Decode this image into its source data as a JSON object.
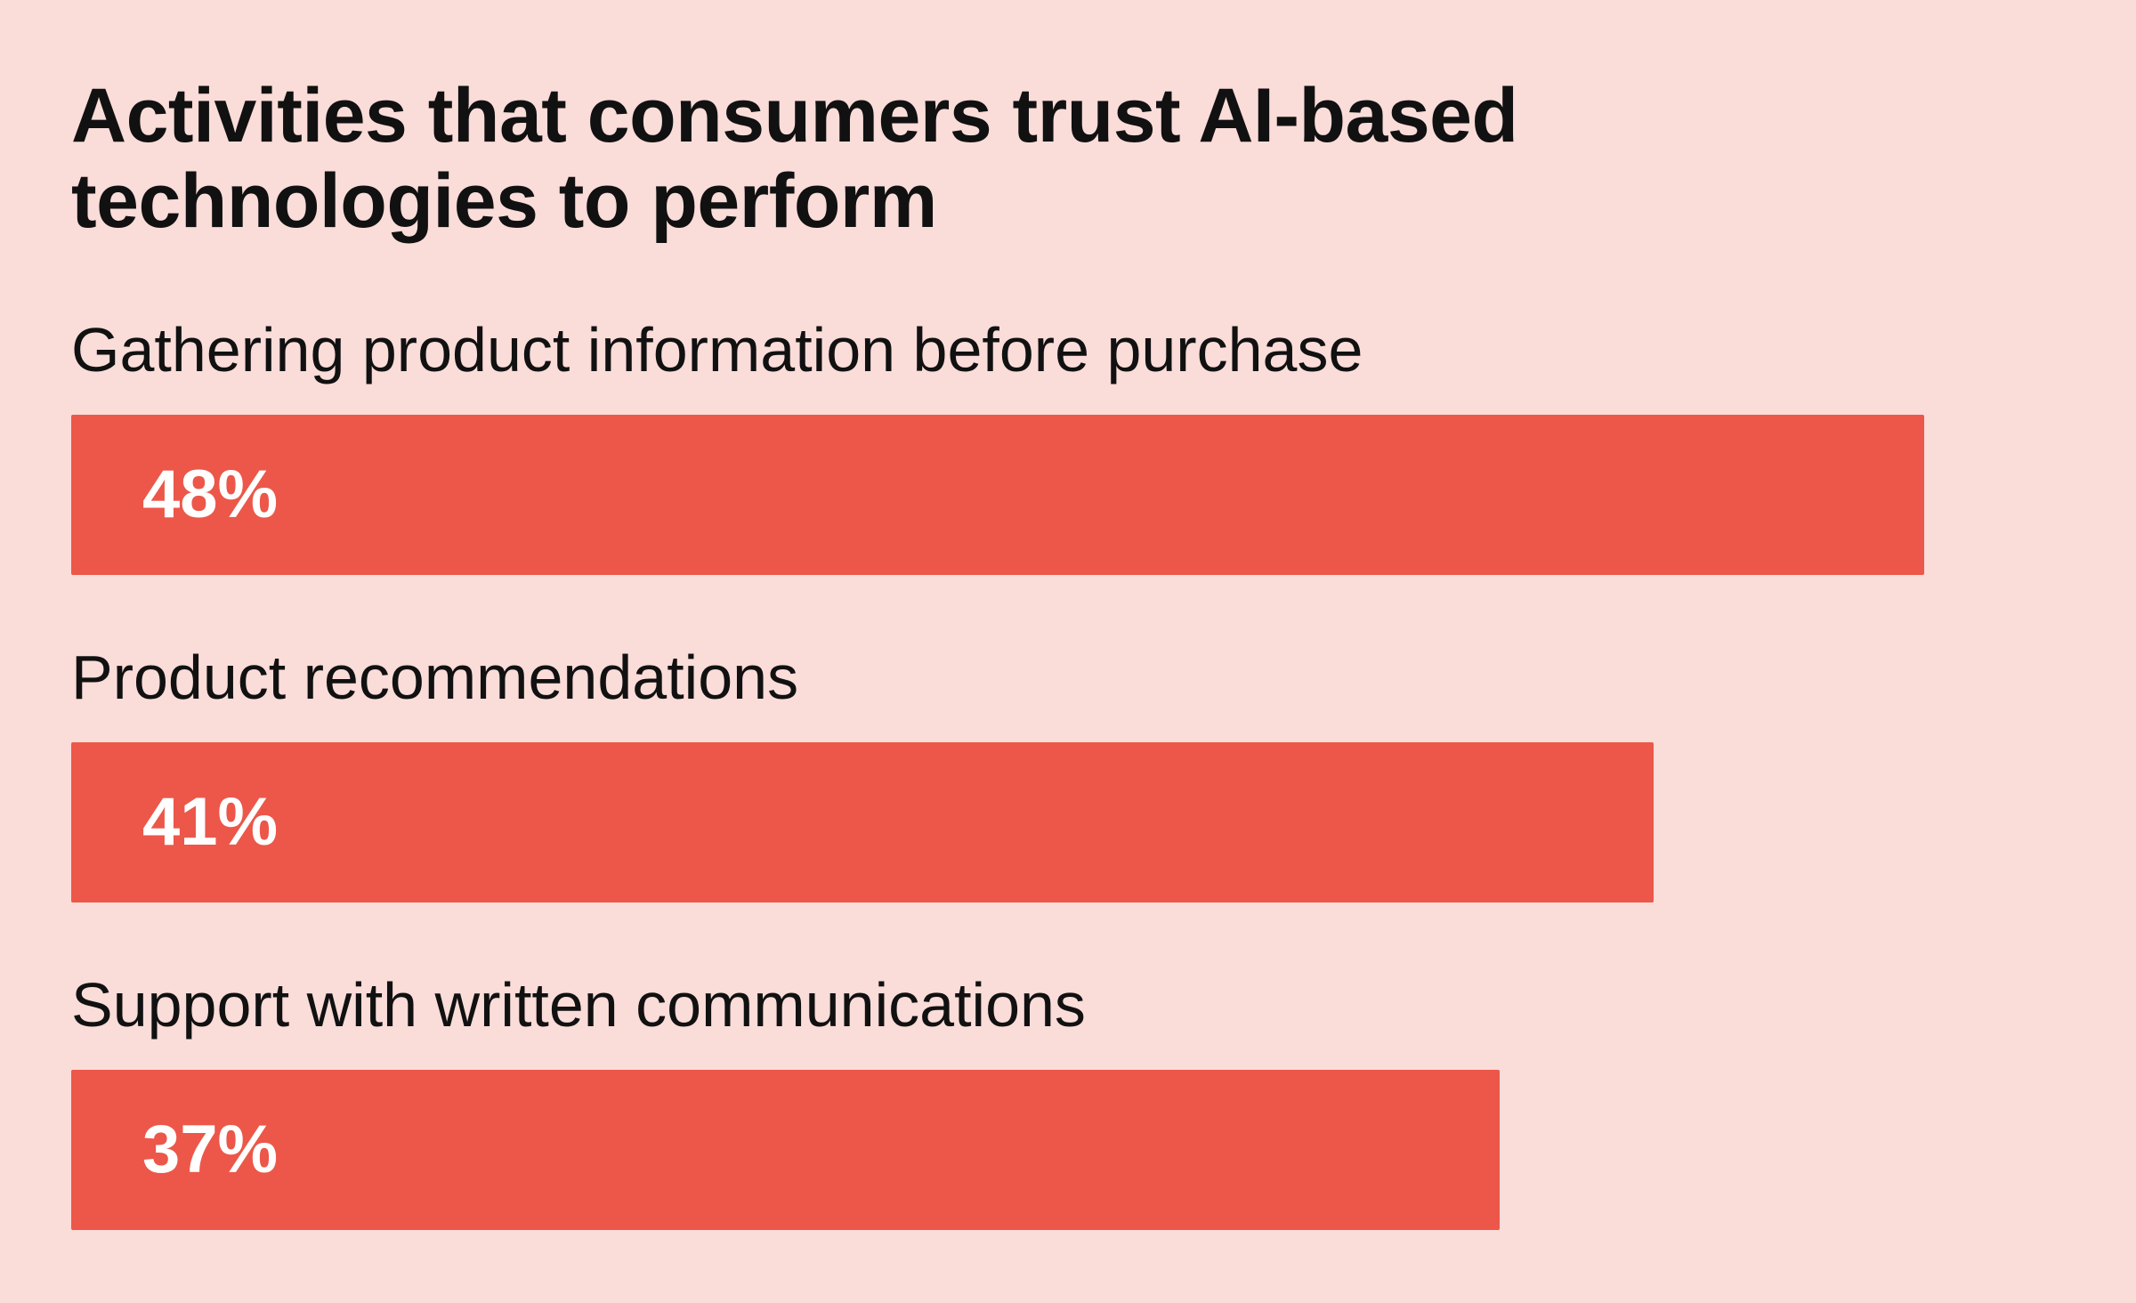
{
  "colors": {
    "background": "#FADCD9",
    "bar": "#EC5749",
    "text": "#111111",
    "bar_text": "#FFFFFF"
  },
  "chart_data": {
    "type": "bar",
    "orientation": "horizontal",
    "title": "Activities that consumers trust AI-based\ntechnologies to perform",
    "categories": [
      "Gathering product information before purchase",
      "Product recommendations",
      "Support with written communications"
    ],
    "values": [
      48,
      41,
      37
    ],
    "value_labels": [
      "48%",
      "41%",
      "37%"
    ],
    "unit": "%",
    "xlim": [
      0,
      48
    ],
    "grid": false,
    "legend": "none"
  }
}
